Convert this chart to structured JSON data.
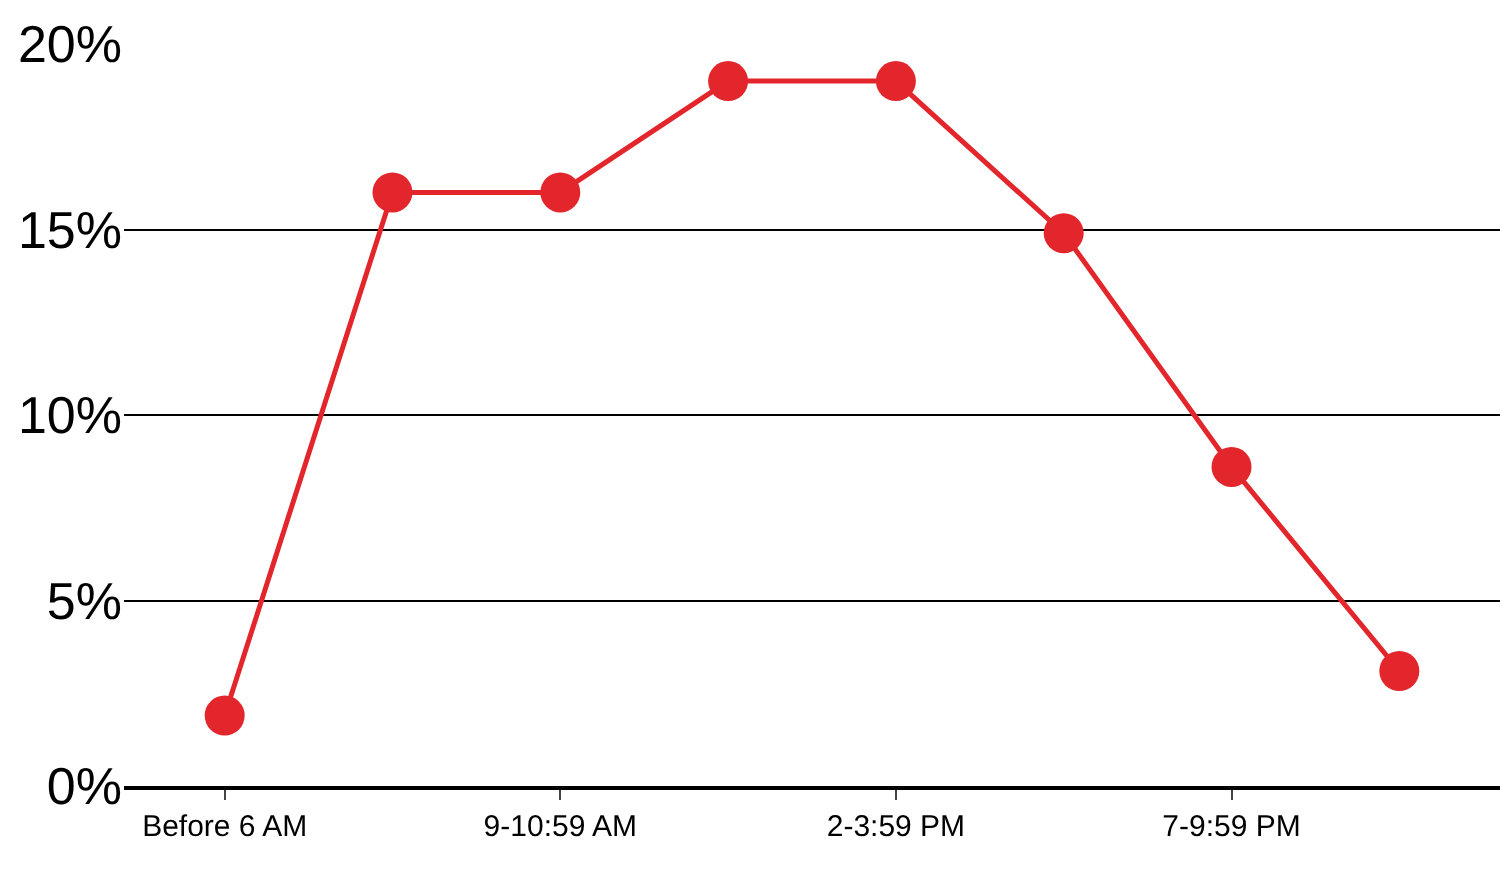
{
  "chart_data": {
    "type": "line",
    "categories": [
      "Before 6 AM",
      null,
      "9-10:59 AM",
      null,
      "2-3:59 PM",
      null,
      "7-9:59 PM",
      null
    ],
    "series": [
      {
        "color": "#e3262b",
        "values": [
          1.9,
          16,
          16,
          19,
          19,
          14.9,
          8.6,
          3.1
        ]
      }
    ],
    "ylim": [
      0,
      20
    ],
    "yticks": [
      {
        "value": 0,
        "label": "0%"
      },
      {
        "value": 5,
        "label": "5%"
      },
      {
        "value": 10,
        "label": "10%"
      },
      {
        "value": 15,
        "label": "15%"
      },
      {
        "value": 20,
        "label": "20%"
      }
    ],
    "grid": "y",
    "marker": "circle",
    "line_style": "solid",
    "legend": false
  }
}
